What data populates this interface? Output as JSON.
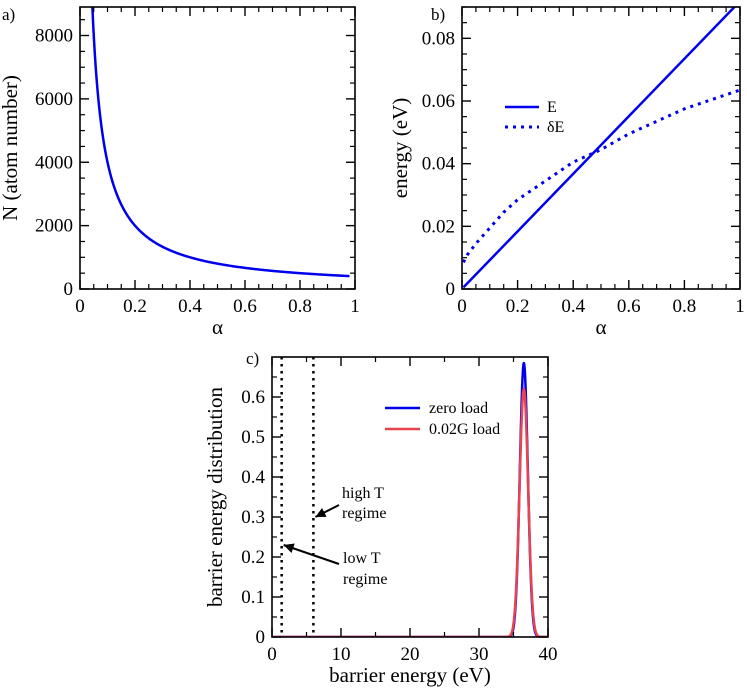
{
  "chart_data": [
    {
      "panel_label": "a)",
      "type": "line",
      "xlabel": "α",
      "ylabel": "N (atom number)",
      "xlim": [
        0,
        1
      ],
      "ylim": [
        0,
        8900
      ],
      "xticks": [
        "0",
        "0.2",
        "0.4",
        "0.6",
        "0.8",
        "1"
      ],
      "yticks": [
        "0",
        "2000",
        "4000",
        "6000",
        "8000"
      ],
      "series": [
        {
          "name": "N",
          "color": "#0000ee",
          "style": "solid",
          "x": [
            0.045,
            0.05,
            0.06,
            0.07,
            0.08,
            0.1,
            0.12,
            0.15,
            0.2,
            0.25,
            0.3,
            0.4,
            0.5,
            0.6,
            0.7,
            0.8,
            0.9,
            0.98
          ],
          "y": [
            8900,
            8000,
            6670,
            5710,
            5000,
            4000,
            3330,
            2670,
            2000,
            1600,
            1330,
            1000,
            800,
            670,
            570,
            500,
            440,
            408
          ]
        }
      ]
    },
    {
      "panel_label": "b)",
      "type": "line",
      "xlabel": "α",
      "ylabel": "energy (eV)",
      "xlim": [
        0,
        1
      ],
      "ylim": [
        0,
        0.09
      ],
      "xticks": [
        "0",
        "0.2",
        "0.4",
        "0.6",
        "0.8",
        "1"
      ],
      "yticks": [
        "0",
        "0.02",
        "0.04",
        "0.06",
        "0.08"
      ],
      "legend": "upper-left",
      "series": [
        {
          "name": "E",
          "color": "#0000ee",
          "style": "solid",
          "x": [
            0.005,
            0.98
          ],
          "y": [
            0.0005,
            0.09
          ]
        },
        {
          "name": "δE",
          "color": "#0000ee",
          "style": "dotted",
          "x": [
            0.005,
            0.02,
            0.05,
            0.1,
            0.15,
            0.2,
            0.3,
            0.4,
            0.5,
            0.6,
            0.7,
            0.8,
            0.9,
            1.0
          ],
          "y": [
            0.0085,
            0.011,
            0.0145,
            0.0195,
            0.0245,
            0.0285,
            0.0345,
            0.0405,
            0.0445,
            0.0495,
            0.0535,
            0.0575,
            0.0605,
            0.0635
          ]
        }
      ]
    },
    {
      "panel_label": "c)",
      "type": "line",
      "xlabel": "barrier energy (eV)",
      "ylabel": "barrier energy distribution",
      "xlim": [
        0,
        40
      ],
      "ylim": [
        0,
        0.7
      ],
      "xticks": [
        "0",
        "10",
        "20",
        "30",
        "40"
      ],
      "yticks": [
        "0",
        "0.1",
        "0.2",
        "0.3",
        "0.4",
        "0.5",
        "0.6"
      ],
      "legend": "upper-right",
      "series": [
        {
          "name": "zero load",
          "color": "#0000ee",
          "style": "solid",
          "gaussian": {
            "mean": 36.5,
            "peak": 0.685,
            "sigma": 0.58
          },
          "x_range": [
            0,
            40
          ]
        },
        {
          "name": "0.02G load",
          "color": "#e8434f",
          "style": "solid",
          "gaussian": {
            "mean": 36.5,
            "peak": 0.62,
            "sigma": 0.62
          },
          "x_range": [
            0,
            40
          ]
        }
      ],
      "vlines": [
        {
          "x": 1.4,
          "style": "dotted"
        },
        {
          "x": 6.0,
          "style": "dotted"
        }
      ],
      "annotations": [
        {
          "lines": [
            "high T",
            "regime"
          ],
          "arrow_to": [
            6.0,
            0.3
          ]
        },
        {
          "lines": [
            "low T",
            "regime"
          ],
          "arrow_to": [
            1.4,
            0.23
          ]
        }
      ]
    }
  ]
}
